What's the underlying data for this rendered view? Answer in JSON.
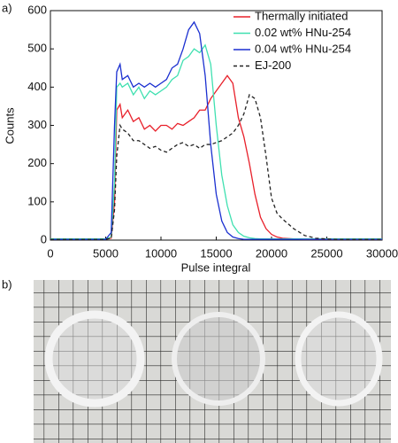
{
  "panel_labels": [
    "a)",
    "b)"
  ],
  "chart_data": {
    "type": "line",
    "xlabel": "Pulse integral",
    "ylabel": "Counts",
    "x": [
      0,
      5000,
      5500,
      5800,
      6000,
      6300,
      6500,
      7000,
      7500,
      8000,
      8500,
      9000,
      9500,
      10000,
      10500,
      11000,
      11500,
      12000,
      12500,
      13000,
      13500,
      14000,
      14500,
      15000,
      15500,
      16000,
      16500,
      17000,
      17500,
      18000,
      18500,
      19000,
      19500,
      20000,
      20500,
      21000,
      22000,
      23000,
      24000,
      25000,
      26000,
      30000
    ],
    "series": [
      {
        "name": "Thermally initiated",
        "color": "#e8202a",
        "dash": false,
        "values": [
          3,
          3,
          5,
          100,
          340,
          355,
          320,
          340,
          310,
          320,
          290,
          300,
          285,
          300,
          300,
          290,
          305,
          300,
          310,
          320,
          340,
          340,
          370,
          390,
          410,
          430,
          410,
          320,
          270,
          200,
          120,
          60,
          30,
          15,
          8,
          5,
          3,
          2,
          2,
          2,
          2,
          2
        ]
      },
      {
        "name": "0.02 wt% HNu-254",
        "color": "#3fe0b0",
        "dash": false,
        "values": [
          3,
          3,
          8,
          150,
          400,
          410,
          400,
          410,
          380,
          400,
          370,
          390,
          380,
          390,
          400,
          420,
          430,
          470,
          480,
          500,
          490,
          510,
          460,
          300,
          170,
          90,
          40,
          20,
          10,
          6,
          4,
          3,
          3,
          3,
          3,
          3,
          3,
          3,
          3,
          3,
          3,
          3
        ]
      },
      {
        "name": "0.04 wt% HNu-254",
        "color": "#1a2fd0",
        "dash": false,
        "values": [
          2,
          2,
          20,
          300,
          440,
          460,
          420,
          430,
          400,
          410,
          400,
          410,
          400,
          410,
          420,
          450,
          460,
          500,
          550,
          570,
          540,
          430,
          250,
          120,
          50,
          20,
          8,
          4,
          2,
          2,
          2,
          2,
          2,
          2,
          2,
          2,
          2,
          2,
          2,
          2,
          2,
          2
        ]
      },
      {
        "name": "EJ-200",
        "color": "#222222",
        "dash": true,
        "values": [
          2,
          2,
          5,
          80,
          220,
          300,
          290,
          280,
          260,
          260,
          250,
          240,
          245,
          235,
          230,
          240,
          250,
          255,
          245,
          250,
          240,
          250,
          250,
          255,
          260,
          270,
          280,
          300,
          330,
          380,
          370,
          320,
          220,
          110,
          70,
          55,
          30,
          12,
          5,
          3,
          2,
          2
        ]
      }
    ],
    "xlim": [
      0,
      30000
    ],
    "xticks": [
      0,
      5000,
      10000,
      15000,
      20000,
      25000,
      30000
    ],
    "ylim": [
      0,
      600
    ],
    "yticks": [
      0,
      100,
      200,
      300,
      400,
      500,
      600
    ],
    "grid": false,
    "legend": "upper right"
  }
}
